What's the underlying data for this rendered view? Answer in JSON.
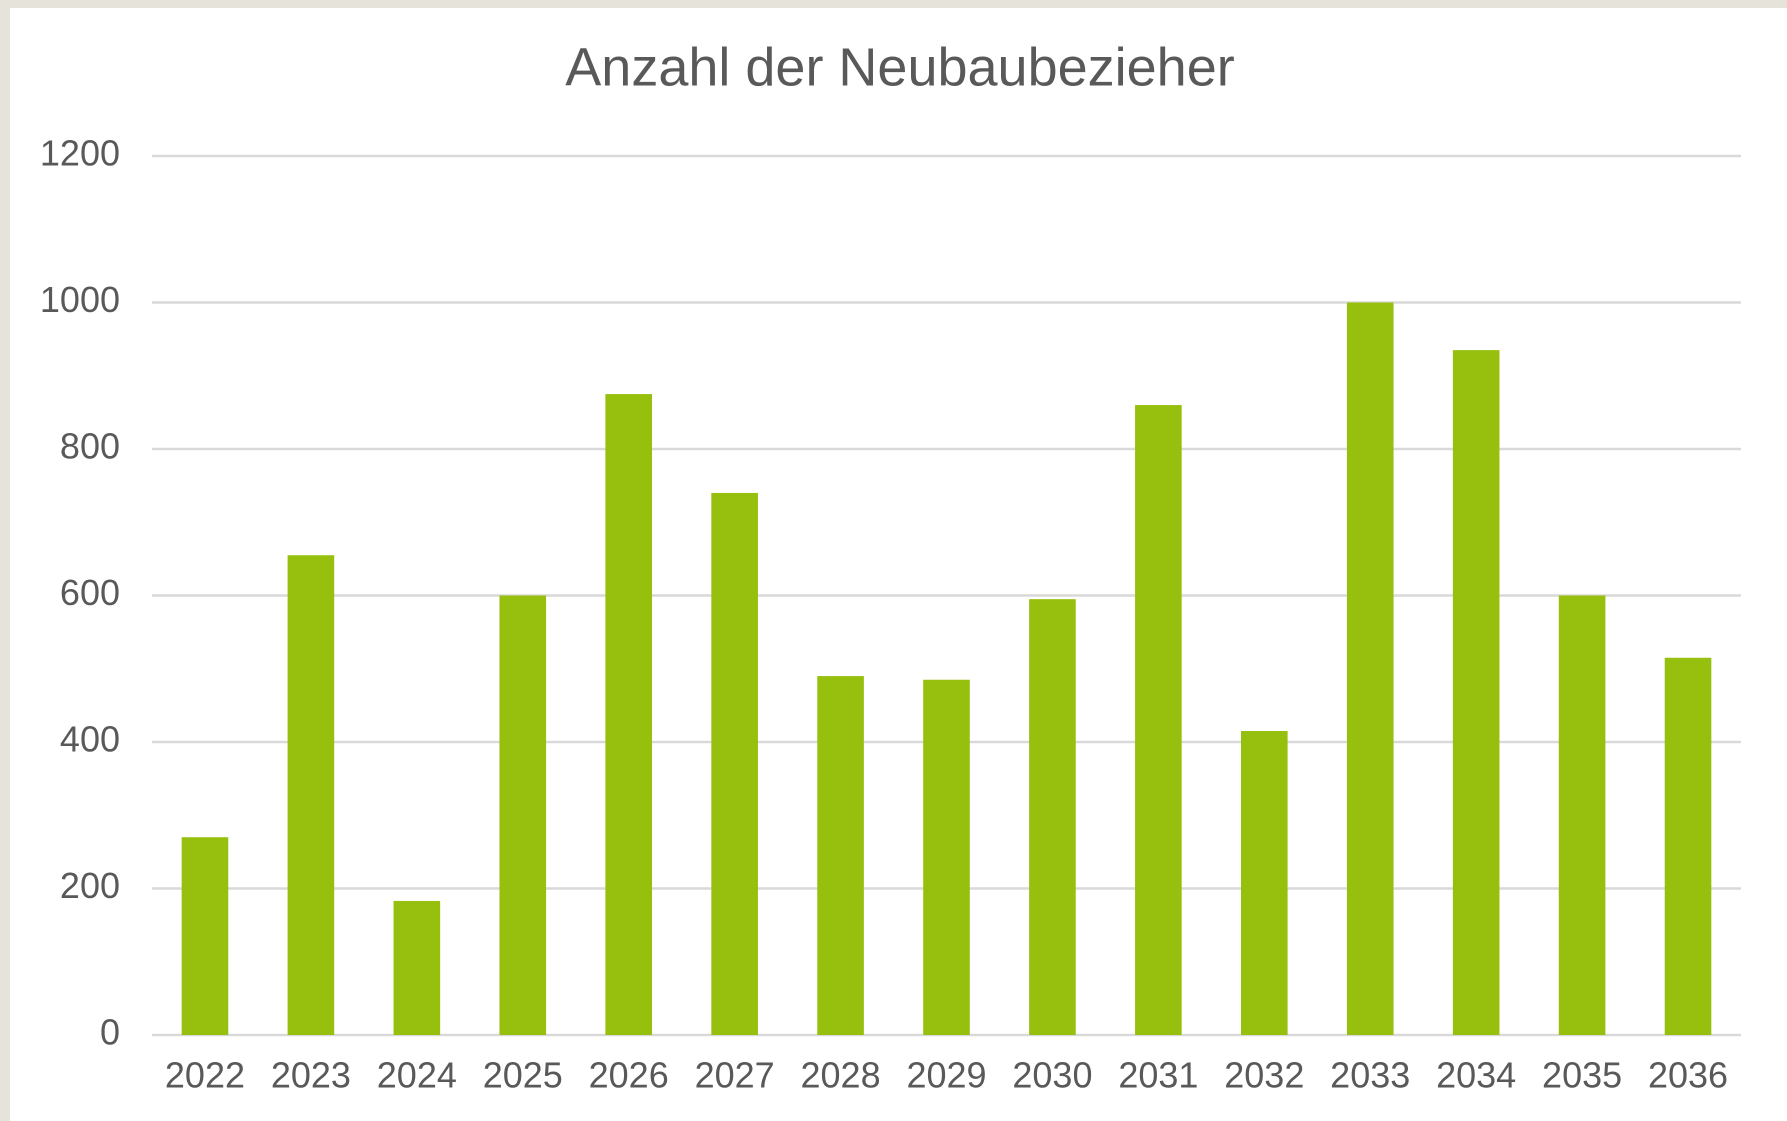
{
  "chart_data": {
    "type": "bar",
    "title": "Anzahl der Neubaubezieher",
    "categories": [
      "2022",
      "2023",
      "2024",
      "2025",
      "2026",
      "2027",
      "2028",
      "2029",
      "2030",
      "2031",
      "2032",
      "2033",
      "2034",
      "2035",
      "2036"
    ],
    "values": [
      270,
      655,
      183,
      600,
      875,
      740,
      490,
      485,
      595,
      860,
      415,
      1000,
      935,
      600,
      515
    ],
    "color": "#97c00e",
    "ylim": [
      0,
      1200
    ],
    "yticks": [
      0,
      200,
      400,
      600,
      800,
      1000,
      1200
    ],
    "grid": true
  }
}
